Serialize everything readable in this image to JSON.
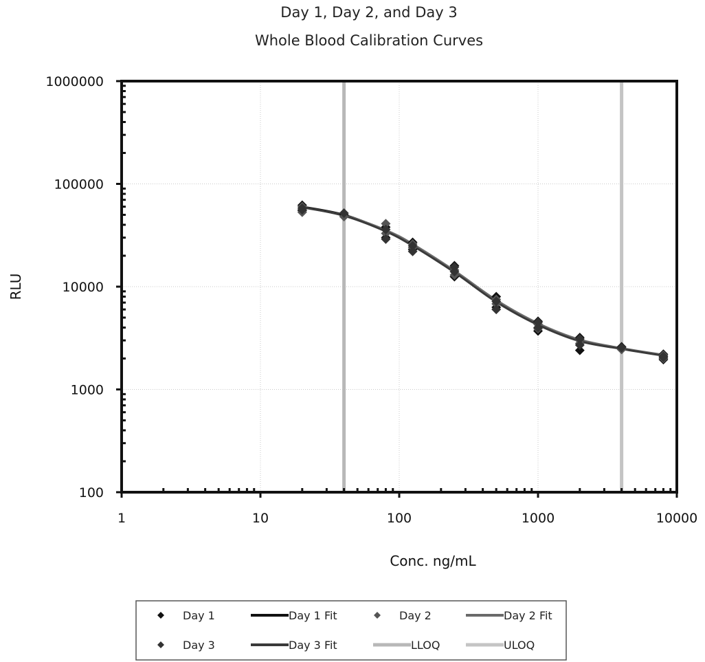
{
  "chart_data": {
    "type": "scatter",
    "title": [
      "Day 1, Day 2, and Day 3",
      "Whole Blood Calibration Curves"
    ],
    "xlabel": "Conc. ng/mL",
    "ylabel": "RLU",
    "x_scale": "log",
    "y_scale": "log",
    "xlim": [
      1,
      10000
    ],
    "ylim": [
      100,
      1000000
    ],
    "x_ticks": [
      1,
      10,
      100,
      1000,
      10000
    ],
    "x_tick_labels": [
      "1",
      "10",
      "100",
      "1000",
      "10000"
    ],
    "y_ticks": [
      100,
      1000,
      10000,
      100000,
      1000000
    ],
    "y_tick_labels": [
      "100",
      "1000",
      "10000",
      "100000",
      "1000000"
    ],
    "grid": true,
    "legend_position": "bottom",
    "legend": [
      {
        "label": "Day 1",
        "kind": "marker"
      },
      {
        "label": "Day 1 Fit",
        "kind": "line"
      },
      {
        "label": "Day 2",
        "kind": "marker"
      },
      {
        "label": "Day 2 Fit",
        "kind": "line"
      },
      {
        "label": "Day 3",
        "kind": "marker"
      },
      {
        "label": "Day 3 Fit",
        "kind": "line"
      },
      {
        "label": "LLOQ",
        "kind": "vline"
      },
      {
        "label": "ULOQ",
        "kind": "vline"
      }
    ],
    "series": [
      {
        "name": "Day 1",
        "kind": "points",
        "color": "#111111",
        "x": [
          20,
          20,
          40,
          80,
          80,
          125,
          125,
          250,
          250,
          500,
          500,
          1000,
          1000,
          2000,
          2000,
          4000,
          8000,
          8000
        ],
        "y": [
          62000,
          55000,
          50000,
          38000,
          30000,
          27000,
          23000,
          16000,
          12500,
          8000,
          6300,
          4600,
          3700,
          3200,
          2400,
          2600,
          2200,
          1950
        ]
      },
      {
        "name": "Day 2",
        "kind": "points",
        "color": "#555555",
        "x": [
          20,
          20,
          40,
          80,
          80,
          125,
          125,
          250,
          250,
          500,
          500,
          1000,
          1000,
          2000,
          2000,
          4000,
          8000,
          8000
        ],
        "y": [
          60000,
          53000,
          48000,
          41000,
          33000,
          26000,
          24000,
          14500,
          13000,
          7500,
          6800,
          4300,
          3900,
          3000,
          2800,
          2450,
          2150,
          2000
        ]
      },
      {
        "name": "Day 3",
        "kind": "points",
        "color": "#333333",
        "x": [
          20,
          20,
          40,
          80,
          80,
          125,
          125,
          250,
          250,
          500,
          500,
          1000,
          1000,
          2000,
          2000,
          4000,
          8000,
          8000
        ],
        "y": [
          58000,
          56000,
          52000,
          36000,
          29000,
          25000,
          22000,
          15500,
          14000,
          7200,
          6000,
          4500,
          4000,
          3100,
          2700,
          2550,
          2100,
          2050
        ]
      },
      {
        "name": "Day 1 Fit",
        "kind": "line",
        "color": "#111111",
        "x": [
          20,
          40,
          80,
          125,
          250,
          500,
          1000,
          2000,
          4000,
          8000
        ],
        "y": [
          60000,
          50000,
          35000,
          25500,
          14000,
          7200,
          4300,
          3000,
          2500,
          2150
        ]
      },
      {
        "name": "Day 2 Fit",
        "kind": "line",
        "color": "#6a6a6a",
        "x": [
          20,
          40,
          80,
          125,
          250,
          500,
          1000,
          2000,
          4000,
          8000
        ],
        "y": [
          59000,
          49500,
          35500,
          26000,
          14300,
          7400,
          4400,
          3050,
          2520,
          2170
        ]
      },
      {
        "name": "Day 3 Fit",
        "kind": "line",
        "color": "#3a3a3a",
        "x": [
          20,
          40,
          80,
          125,
          250,
          500,
          1000,
          2000,
          4000,
          8000
        ],
        "y": [
          59500,
          49000,
          34500,
          25000,
          13800,
          7100,
          4250,
          2950,
          2480,
          2130
        ]
      },
      {
        "name": "LLOQ",
        "kind": "vline",
        "color": "#b8b8b8",
        "x": 40
      },
      {
        "name": "ULOQ",
        "kind": "vline",
        "color": "#c4c4c4",
        "x": 4000
      }
    ]
  }
}
